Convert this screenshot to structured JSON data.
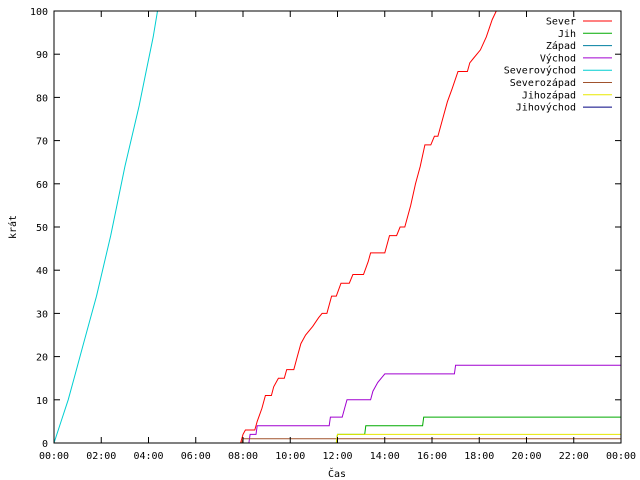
{
  "chart_data": {
    "type": "line",
    "title": "",
    "xlabel": "Čas",
    "ylabel": "krát",
    "xlim": [
      0,
      24
    ],
    "ylim": [
      0,
      100
    ],
    "x_ticks": [
      {
        "value": 0,
        "label": "00:00"
      },
      {
        "value": 2,
        "label": "02:00"
      },
      {
        "value": 4,
        "label": "04:00"
      },
      {
        "value": 6,
        "label": "06:00"
      },
      {
        "value": 8,
        "label": "08:00"
      },
      {
        "value": 10,
        "label": "10:00"
      },
      {
        "value": 12,
        "label": "12:00"
      },
      {
        "value": 14,
        "label": "14:00"
      },
      {
        "value": 16,
        "label": "16:00"
      },
      {
        "value": 18,
        "label": "18:00"
      },
      {
        "value": 20,
        "label": "20:00"
      },
      {
        "value": 22,
        "label": "22:00"
      },
      {
        "value": 24,
        "label": "00:00"
      }
    ],
    "y_ticks": [
      0,
      10,
      20,
      30,
      40,
      50,
      60,
      70,
      80,
      90,
      100
    ],
    "grid": false,
    "legend_position": "top-right",
    "series": [
      {
        "name": "Sever",
        "color": "#ff0000",
        "points": [
          [
            0,
            0
          ],
          [
            7.9,
            0
          ],
          [
            8.0,
            2
          ],
          [
            8.1,
            3
          ],
          [
            8.5,
            3
          ],
          [
            8.6,
            5
          ],
          [
            8.8,
            8
          ],
          [
            8.95,
            11
          ],
          [
            9.2,
            11
          ],
          [
            9.3,
            13
          ],
          [
            9.5,
            15
          ],
          [
            9.75,
            15
          ],
          [
            9.85,
            17
          ],
          [
            10.15,
            17
          ],
          [
            10.3,
            20
          ],
          [
            10.45,
            23
          ],
          [
            10.65,
            25
          ],
          [
            10.95,
            27
          ],
          [
            11.2,
            29
          ],
          [
            11.35,
            30
          ],
          [
            11.55,
            30
          ],
          [
            11.75,
            34
          ],
          [
            11.95,
            34
          ],
          [
            12.15,
            37
          ],
          [
            12.5,
            37
          ],
          [
            12.65,
            39
          ],
          [
            13.1,
            39
          ],
          [
            13.3,
            42
          ],
          [
            13.4,
            44
          ],
          [
            14.0,
            44
          ],
          [
            14.2,
            48
          ],
          [
            14.5,
            48
          ],
          [
            14.65,
            50
          ],
          [
            14.85,
            50
          ],
          [
            15.1,
            55
          ],
          [
            15.3,
            60
          ],
          [
            15.5,
            64
          ],
          [
            15.7,
            69
          ],
          [
            15.95,
            69
          ],
          [
            16.1,
            71
          ],
          [
            16.25,
            71
          ],
          [
            16.5,
            76
          ],
          [
            16.65,
            79
          ],
          [
            16.85,
            82
          ],
          [
            17.1,
            86
          ],
          [
            17.5,
            86
          ],
          [
            17.6,
            88
          ],
          [
            17.75,
            89
          ],
          [
            18.05,
            91
          ],
          [
            18.3,
            94
          ],
          [
            18.55,
            98
          ],
          [
            18.72,
            100
          ]
        ]
      },
      {
        "name": "Jih",
        "color": "#00aa00",
        "points": [
          [
            0,
            0
          ],
          [
            11.95,
            0
          ],
          [
            12.0,
            2
          ],
          [
            13.15,
            2
          ],
          [
            13.2,
            4
          ],
          [
            15.6,
            4
          ],
          [
            15.65,
            6
          ],
          [
            24,
            6
          ]
        ]
      },
      {
        "name": "Západ",
        "color": "#007fa0",
        "points": []
      },
      {
        "name": "Východ",
        "color": "#a000d0",
        "points": [
          [
            0,
            0
          ],
          [
            8.25,
            0
          ],
          [
            8.3,
            2
          ],
          [
            8.55,
            2
          ],
          [
            8.6,
            4
          ],
          [
            11.65,
            4
          ],
          [
            11.7,
            6
          ],
          [
            12.2,
            6
          ],
          [
            12.3,
            8
          ],
          [
            12.4,
            10
          ],
          [
            13.4,
            10
          ],
          [
            13.5,
            12
          ],
          [
            13.7,
            14
          ],
          [
            14.0,
            16
          ],
          [
            16.95,
            16
          ],
          [
            17.0,
            18
          ],
          [
            24,
            18
          ]
        ]
      },
      {
        "name": "Severovýchod",
        "color": "#00ced1",
        "points": [
          [
            0,
            0
          ],
          [
            0.3,
            5
          ],
          [
            0.6,
            10
          ],
          [
            0.9,
            16
          ],
          [
            1.2,
            22
          ],
          [
            1.5,
            28
          ],
          [
            1.8,
            34
          ],
          [
            2.1,
            41
          ],
          [
            2.4,
            48
          ],
          [
            2.7,
            56
          ],
          [
            3.0,
            64
          ],
          [
            3.3,
            71
          ],
          [
            3.6,
            78
          ],
          [
            3.9,
            86
          ],
          [
            4.2,
            94
          ],
          [
            4.38,
            100
          ]
        ]
      },
      {
        "name": "Severozápad",
        "color": "#a0522d",
        "points": [
          [
            0,
            0
          ],
          [
            7.95,
            0
          ],
          [
            8.0,
            1
          ],
          [
            24,
            1
          ]
        ]
      },
      {
        "name": "Jihozápad",
        "color": "#e8e800",
        "points": [
          [
            0,
            0
          ],
          [
            11.95,
            0
          ],
          [
            12.0,
            2
          ],
          [
            24,
            2
          ]
        ]
      },
      {
        "name": "Jihovýchod",
        "color": "#000080",
        "points": []
      }
    ]
  }
}
